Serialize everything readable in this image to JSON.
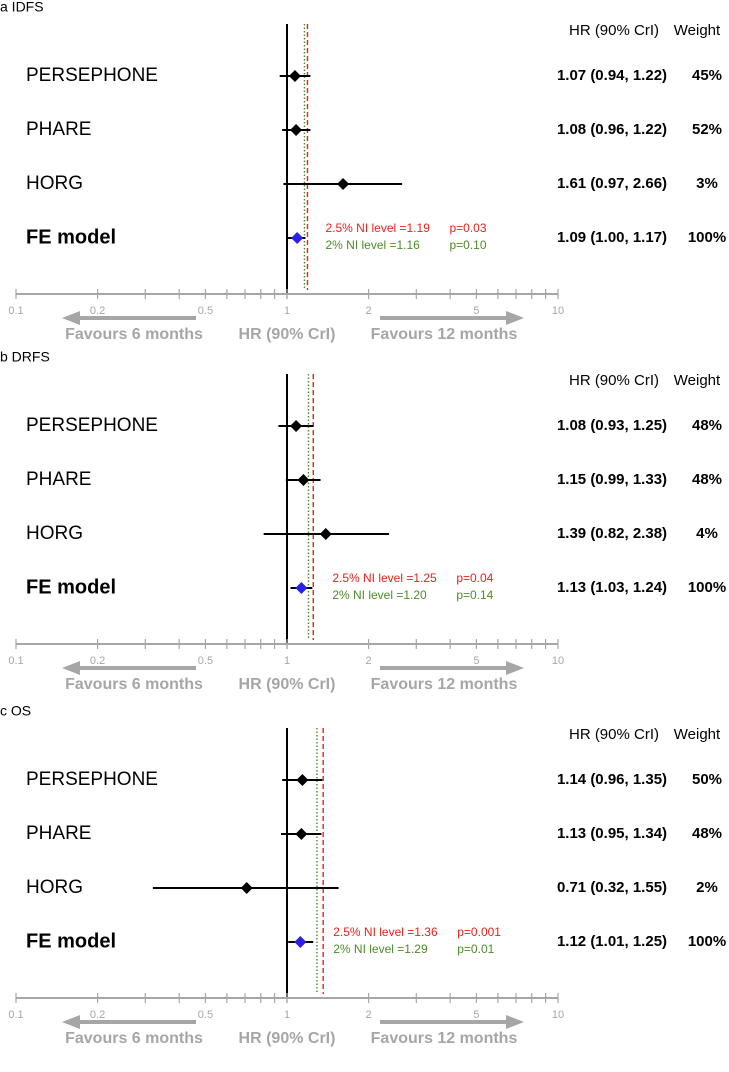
{
  "chart_data": [
    {
      "type": "forest",
      "panel_label": "a",
      "title": "IDFS",
      "col_hr_header": "HR (90% CrI)",
      "col_weight_header": "Weight",
      "axis_scale": "log",
      "xlim": [
        0.1,
        10
      ],
      "xticks": [
        0.1,
        0.2,
        0.5,
        1,
        2,
        5,
        10
      ],
      "xtick_labels": [
        "0.1",
        "0.2",
        "0.5",
        "1",
        "2",
        "5",
        "10"
      ],
      "xlabel": "HR (90% CrI)",
      "left_arrow_label": "Favours 6 months",
      "right_arrow_label": "Favours 12 months",
      "ni_margins": [
        {
          "label": "2.5% NI level =1.19",
          "pvalue": "p=0.03",
          "value": 1.19,
          "color": "#e8221b",
          "style": "dashed"
        },
        {
          "label": "2% NI level =1.16",
          "pvalue": "p=0.10",
          "value": 1.16,
          "color": "#4e8a2a",
          "style": "dotted"
        }
      ],
      "studies": [
        {
          "name": "PERSEPHONE",
          "hr": 1.07,
          "lower": 0.94,
          "upper": 1.22,
          "hr_text": "1.07 (0.94, 1.22)",
          "weight": "45%",
          "pooled": false
        },
        {
          "name": "PHARE",
          "hr": 1.08,
          "lower": 0.96,
          "upper": 1.22,
          "hr_text": "1.08 (0.96, 1.22)",
          "weight": "52%",
          "pooled": false
        },
        {
          "name": "HORG",
          "hr": 1.61,
          "lower": 0.97,
          "upper": 2.66,
          "hr_text": "1.61 (0.97, 2.66)",
          "weight": "3%",
          "pooled": false
        },
        {
          "name": "FE model",
          "hr": 1.09,
          "lower": 1.0,
          "upper": 1.17,
          "hr_text": "1.09 (1.00, 1.17)",
          "weight": "100%",
          "pooled": true
        }
      ]
    },
    {
      "type": "forest",
      "panel_label": "b",
      "title": "DRFS",
      "col_hr_header": "HR (90% CrI)",
      "col_weight_header": "Weight",
      "axis_scale": "log",
      "xlim": [
        0.1,
        10
      ],
      "xticks": [
        0.1,
        0.2,
        0.5,
        1,
        2,
        5,
        10
      ],
      "xtick_labels": [
        "0.1",
        "0.2",
        "0.5",
        "1",
        "2",
        "5",
        "10"
      ],
      "xlabel": "HR (90% CrI)",
      "left_arrow_label": "Favours 6 months",
      "right_arrow_label": "Favours 12 months",
      "ni_margins": [
        {
          "label": "2.5% NI level =1.25",
          "pvalue": "p=0.04",
          "value": 1.25,
          "color": "#e8221b",
          "style": "dashed"
        },
        {
          "label": "2% NI level =1.20",
          "pvalue": "p=0.14",
          "value": 1.2,
          "color": "#4e8a2a",
          "style": "dotted"
        }
      ],
      "studies": [
        {
          "name": "PERSEPHONE",
          "hr": 1.08,
          "lower": 0.93,
          "upper": 1.25,
          "hr_text": "1.08 (0.93, 1.25)",
          "weight": "48%",
          "pooled": false
        },
        {
          "name": "PHARE",
          "hr": 1.15,
          "lower": 0.99,
          "upper": 1.33,
          "hr_text": "1.15 (0.99, 1.33)",
          "weight": "48%",
          "pooled": false
        },
        {
          "name": "HORG",
          "hr": 1.39,
          "lower": 0.82,
          "upper": 2.38,
          "hr_text": "1.39 (0.82, 2.38)",
          "weight": "4%",
          "pooled": false
        },
        {
          "name": "FE model",
          "hr": 1.13,
          "lower": 1.03,
          "upper": 1.24,
          "hr_text": "1.13 (1.03, 1.24)",
          "weight": "100%",
          "pooled": true
        }
      ]
    },
    {
      "type": "forest",
      "panel_label": "c",
      "title": "OS",
      "col_hr_header": "HR (90% CrI)",
      "col_weight_header": "Weight",
      "axis_scale": "log",
      "xlim": [
        0.1,
        10
      ],
      "xticks": [
        0.1,
        0.2,
        0.5,
        1,
        2,
        5,
        10
      ],
      "xtick_labels": [
        "0.1",
        "0.2",
        "0.5",
        "1",
        "2",
        "5",
        "10"
      ],
      "xlabel": "HR (90% CrI)",
      "left_arrow_label": "Favours 6 months",
      "right_arrow_label": "Favours 12 months",
      "ni_margins": [
        {
          "label": "2.5% NI level =1.36",
          "pvalue": "p=0.001",
          "value": 1.36,
          "color": "#e8221b",
          "style": "dashed"
        },
        {
          "label": "2% NI level =1.29",
          "pvalue": "p=0.01",
          "value": 1.29,
          "color": "#4e8a2a",
          "style": "dotted"
        }
      ],
      "studies": [
        {
          "name": "PERSEPHONE",
          "hr": 1.14,
          "lower": 0.96,
          "upper": 1.35,
          "hr_text": "1.14 (0.96, 1.35)",
          "weight": "50%",
          "pooled": false
        },
        {
          "name": "PHARE",
          "hr": 1.13,
          "lower": 0.95,
          "upper": 1.34,
          "hr_text": "1.13 (0.95, 1.34)",
          "weight": "48%",
          "pooled": false
        },
        {
          "name": "HORG",
          "hr": 0.71,
          "lower": 0.32,
          "upper": 1.55,
          "hr_text": "0.71 (0.32, 1.55)",
          "weight": "2%",
          "pooled": false
        },
        {
          "name": "FE model",
          "hr": 1.12,
          "lower": 1.01,
          "upper": 1.25,
          "hr_text": "1.12 (1.01, 1.25)",
          "weight": "100%",
          "pooled": true
        }
      ]
    }
  ],
  "colors": {
    "axis_gray": "#a6a6a6",
    "text_black": "#000000",
    "marker_black": "#000000",
    "pooled_blue": "#2b21e6"
  }
}
